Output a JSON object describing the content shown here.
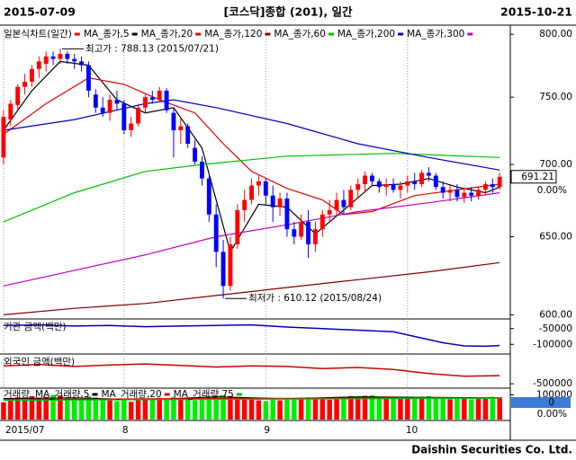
{
  "header": {
    "start": "2015-07-09",
    "end": "2015-10-21"
  },
  "footer": "Daishin Securities Co. Ltd.",
  "chart_data": [
    {
      "type": "candlestick",
      "title": "[코스닥]종합 (201), 일간",
      "name": "일본식차트(일간)",
      "log_scale": true,
      "up_color": "#ff0000",
      "down_color": "#0000ff",
      "xlim": [
        -0.5,
        71.5
      ],
      "xticks": [
        {
          "value": 0,
          "label": "2015/07"
        },
        {
          "value": 17,
          "label": "8"
        },
        {
          "value": 37,
          "label": "9"
        },
        {
          "value": 57,
          "label": "10"
        }
      ],
      "ylim": [
        598,
        806
      ],
      "yticks": [
        {
          "value": 800,
          "label": "800.00"
        },
        {
          "value": 750,
          "label": "750.00"
        },
        {
          "value": 700,
          "label": "700.00"
        },
        {
          "value": 650,
          "label": "650.00"
        },
        {
          "value": 600,
          "label": "600.00"
        }
      ],
      "open": [
        705,
        733,
        744,
        758,
        762,
        772,
        776,
        782,
        780,
        784,
        780,
        778,
        775,
        752,
        742,
        738,
        748,
        745,
        725,
        730,
        742,
        750,
        748,
        755,
        738,
        725,
        728,
        712,
        702,
        690,
        665,
        640,
        618,
        645,
        668,
        675,
        685,
        688,
        678,
        670,
        676,
        655,
        650,
        660,
        645,
        655,
        665,
        668,
        675,
        670,
        682,
        686,
        692,
        688,
        684,
        686,
        682,
        685,
        688,
        686,
        694,
        692,
        684,
        680,
        682,
        677,
        680,
        678,
        682,
        686,
        684
      ],
      "high": [
        740,
        748,
        760,
        768,
        775,
        782,
        786,
        786,
        788.13,
        786,
        784,
        782,
        778,
        756,
        750,
        752,
        755,
        748,
        735,
        745,
        752,
        755,
        758,
        757,
        742,
        735,
        730,
        718,
        706,
        692,
        672,
        648,
        650,
        672,
        682,
        690,
        692,
        690,
        685,
        680,
        680,
        660,
        665,
        668,
        660,
        668,
        675,
        680,
        682,
        685,
        690,
        695,
        694,
        690,
        690,
        690,
        688,
        692,
        694,
        696,
        698,
        694,
        688,
        685,
        686,
        683,
        684,
        684,
        688,
        690,
        694
      ],
      "low": [
        700,
        728,
        740,
        752,
        758,
        765,
        770,
        775,
        776,
        776,
        772,
        770,
        750,
        738,
        735,
        732,
        740,
        722,
        720,
        728,
        738,
        745,
        746,
        738,
        705,
        715,
        712,
        700,
        685,
        660,
        630,
        610.12,
        615,
        642,
        660,
        672,
        678,
        672,
        660,
        664,
        650,
        645,
        648,
        636,
        640,
        650,
        660,
        664,
        665,
        668,
        676,
        680,
        685,
        680,
        678,
        680,
        676,
        680,
        682,
        684,
        688,
        682,
        676,
        674,
        674,
        673,
        674,
        675,
        678,
        680,
        682
      ],
      "close": [
        735,
        745,
        758,
        762,
        772,
        778,
        782,
        780,
        784,
        780,
        778,
        775,
        755,
        742,
        738,
        748,
        745,
        725,
        730,
        742,
        750,
        748,
        755,
        740,
        725,
        728,
        715,
        702,
        690,
        665,
        640,
        618,
        645,
        668,
        675,
        685,
        688,
        678,
        670,
        676,
        655,
        650,
        660,
        645,
        655,
        665,
        668,
        675,
        670,
        682,
        686,
        692,
        688,
        684,
        686,
        682,
        685,
        688,
        686,
        694,
        692,
        684,
        680,
        682,
        677,
        680,
        678,
        682,
        686,
        684,
        691.21
      ],
      "change_label": "0.00%",
      "series": [
        {
          "name": "MA_종가,5",
          "color": "#000000",
          "x": [
            0,
            4,
            8,
            12,
            16,
            20,
            24,
            28,
            32,
            36,
            40,
            44,
            48,
            52,
            56,
            60,
            64,
            68,
            70
          ],
          "values": [
            725,
            755,
            778,
            775,
            748,
            738,
            742,
            712,
            640,
            672,
            670,
            652,
            668,
            685,
            686,
            690,
            684,
            680,
            684
          ]
        },
        {
          "name": "MA_종가,20",
          "color": "#e00000",
          "x": [
            0,
            6,
            12,
            17,
            22,
            27,
            31,
            35,
            40,
            45,
            48,
            52,
            58,
            64,
            70
          ],
          "values": [
            722,
            745,
            765,
            760,
            748,
            738,
            715,
            695,
            683,
            675,
            665,
            667,
            678,
            682,
            686
          ]
        },
        {
          "name": "MA_종가,120",
          "color": "#800000",
          "x": [
            0,
            10,
            20,
            30,
            40,
            50,
            60,
            70
          ],
          "values": [
            600,
            604,
            607,
            612,
            617,
            622,
            627,
            633
          ]
        },
        {
          "name": "MA_종가,60",
          "color": "#00c000",
          "x": [
            0,
            10,
            20,
            28,
            40,
            55,
            70
          ],
          "values": [
            660,
            680,
            695,
            700,
            706,
            708,
            705
          ]
        },
        {
          "name": "MA_종가,200",
          "color": "#0000c0",
          "x": [
            0,
            10,
            20,
            24,
            30,
            40,
            50,
            60,
            70
          ],
          "values": [
            725,
            733,
            745,
            748,
            742,
            730,
            715,
            705,
            696
          ]
        },
        {
          "name": "MA_종가,300",
          "color": "#c000c0",
          "x": [
            0,
            10,
            20,
            30,
            40,
            50,
            60,
            70
          ],
          "values": [
            618,
            628,
            638,
            650,
            658,
            667,
            673,
            680
          ]
        }
      ],
      "annotations": [
        {
          "text": "최고가 : 788.13 (2015/07/21)",
          "x": 8,
          "y": 788.13,
          "color": "#c00000"
        },
        {
          "text": "최저가 : 610.12 (2015/08/24)",
          "x": 31,
          "y": 610.12,
          "color": "#0000c0"
        }
      ]
    },
    {
      "type": "line",
      "title": "기관 금액(백만)",
      "xlim": [
        -0.5,
        71.5
      ],
      "ylim": [
        -125000,
        -25000
      ],
      "yticks": [
        -50000,
        -100000
      ],
      "series": [
        {
          "color": "#0000c0",
          "x": [
            0,
            5,
            10,
            15,
            20,
            25,
            30,
            35,
            40,
            45,
            50,
            55,
            60,
            62,
            65,
            68,
            70
          ],
          "values": [
            -40000,
            -38000,
            -42000,
            -40000,
            -44000,
            -42000,
            -40000,
            -38000,
            -45000,
            -50000,
            -55000,
            -60000,
            -85000,
            -95000,
            -105000,
            -106000,
            -104000
          ]
        }
      ]
    },
    {
      "type": "line",
      "title": "외국인 금액(백만)",
      "xlim": [
        -0.5,
        71.5
      ],
      "ylim": [
        -550000,
        50000
      ],
      "yticks": [
        -500000
      ],
      "series": [
        {
          "color": "#d00000",
          "x": [
            0,
            5,
            10,
            15,
            20,
            25,
            30,
            35,
            40,
            45,
            50,
            55,
            60,
            65,
            70
          ],
          "values": [
            -150000,
            -120000,
            -160000,
            -130000,
            -110000,
            -140000,
            -170000,
            -150000,
            -160000,
            -200000,
            -180000,
            -220000,
            -300000,
            -350000,
            -340000
          ]
        }
      ]
    },
    {
      "type": "bar",
      "title": "거래량",
      "xlim": [
        -0.5,
        71.5
      ],
      "ylim": [
        0,
        120000
      ],
      "yticks": [
        100000
      ],
      "up_color": "#ff0000",
      "down_color": "#00ee00",
      "values": [
        70000,
        85000,
        90000,
        80000,
        95000,
        88000,
        92000,
        100000,
        98000,
        90000,
        85000,
        80000,
        95000,
        90000,
        82000,
        78000,
        75000,
        80000,
        72000,
        78000,
        82000,
        85000,
        88000,
        80000,
        92000,
        85000,
        80000,
        78000,
        82000,
        95000,
        98000,
        100000,
        95000,
        90000,
        85000,
        80000,
        78000,
        75000,
        80000,
        78000,
        82000,
        85000,
        88000,
        90000,
        85000,
        82000,
        80000,
        88000,
        92000,
        95000,
        90000,
        96000,
        98000,
        92000,
        88000,
        90000,
        85000,
        88000,
        90000,
        92000,
        95000,
        88000,
        85000,
        82000,
        86000,
        84000,
        82000,
        85000,
        88000,
        92000,
        90000
      ],
      "box_labels": [
        "0",
        "0.00%"
      ],
      "series": [
        {
          "name": "MA_거래량,5",
          "color": "#000000",
          "x": [
            0,
            10,
            20,
            30,
            40,
            50,
            60,
            70
          ],
          "values": [
            85000,
            88000,
            80000,
            92000,
            84000,
            92000,
            90000,
            87000
          ]
        },
        {
          "name": "MA_거래량,20",
          "color": "#e00000",
          "x": [
            0,
            20,
            40,
            60,
            70
          ],
          "values": [
            80000,
            84000,
            86000,
            89000,
            88000
          ]
        },
        {
          "name": "MA_거래량,75",
          "color": "#00c000",
          "x": [
            0,
            35,
            70
          ],
          "values": [
            78000,
            82000,
            86000
          ]
        }
      ]
    }
  ]
}
